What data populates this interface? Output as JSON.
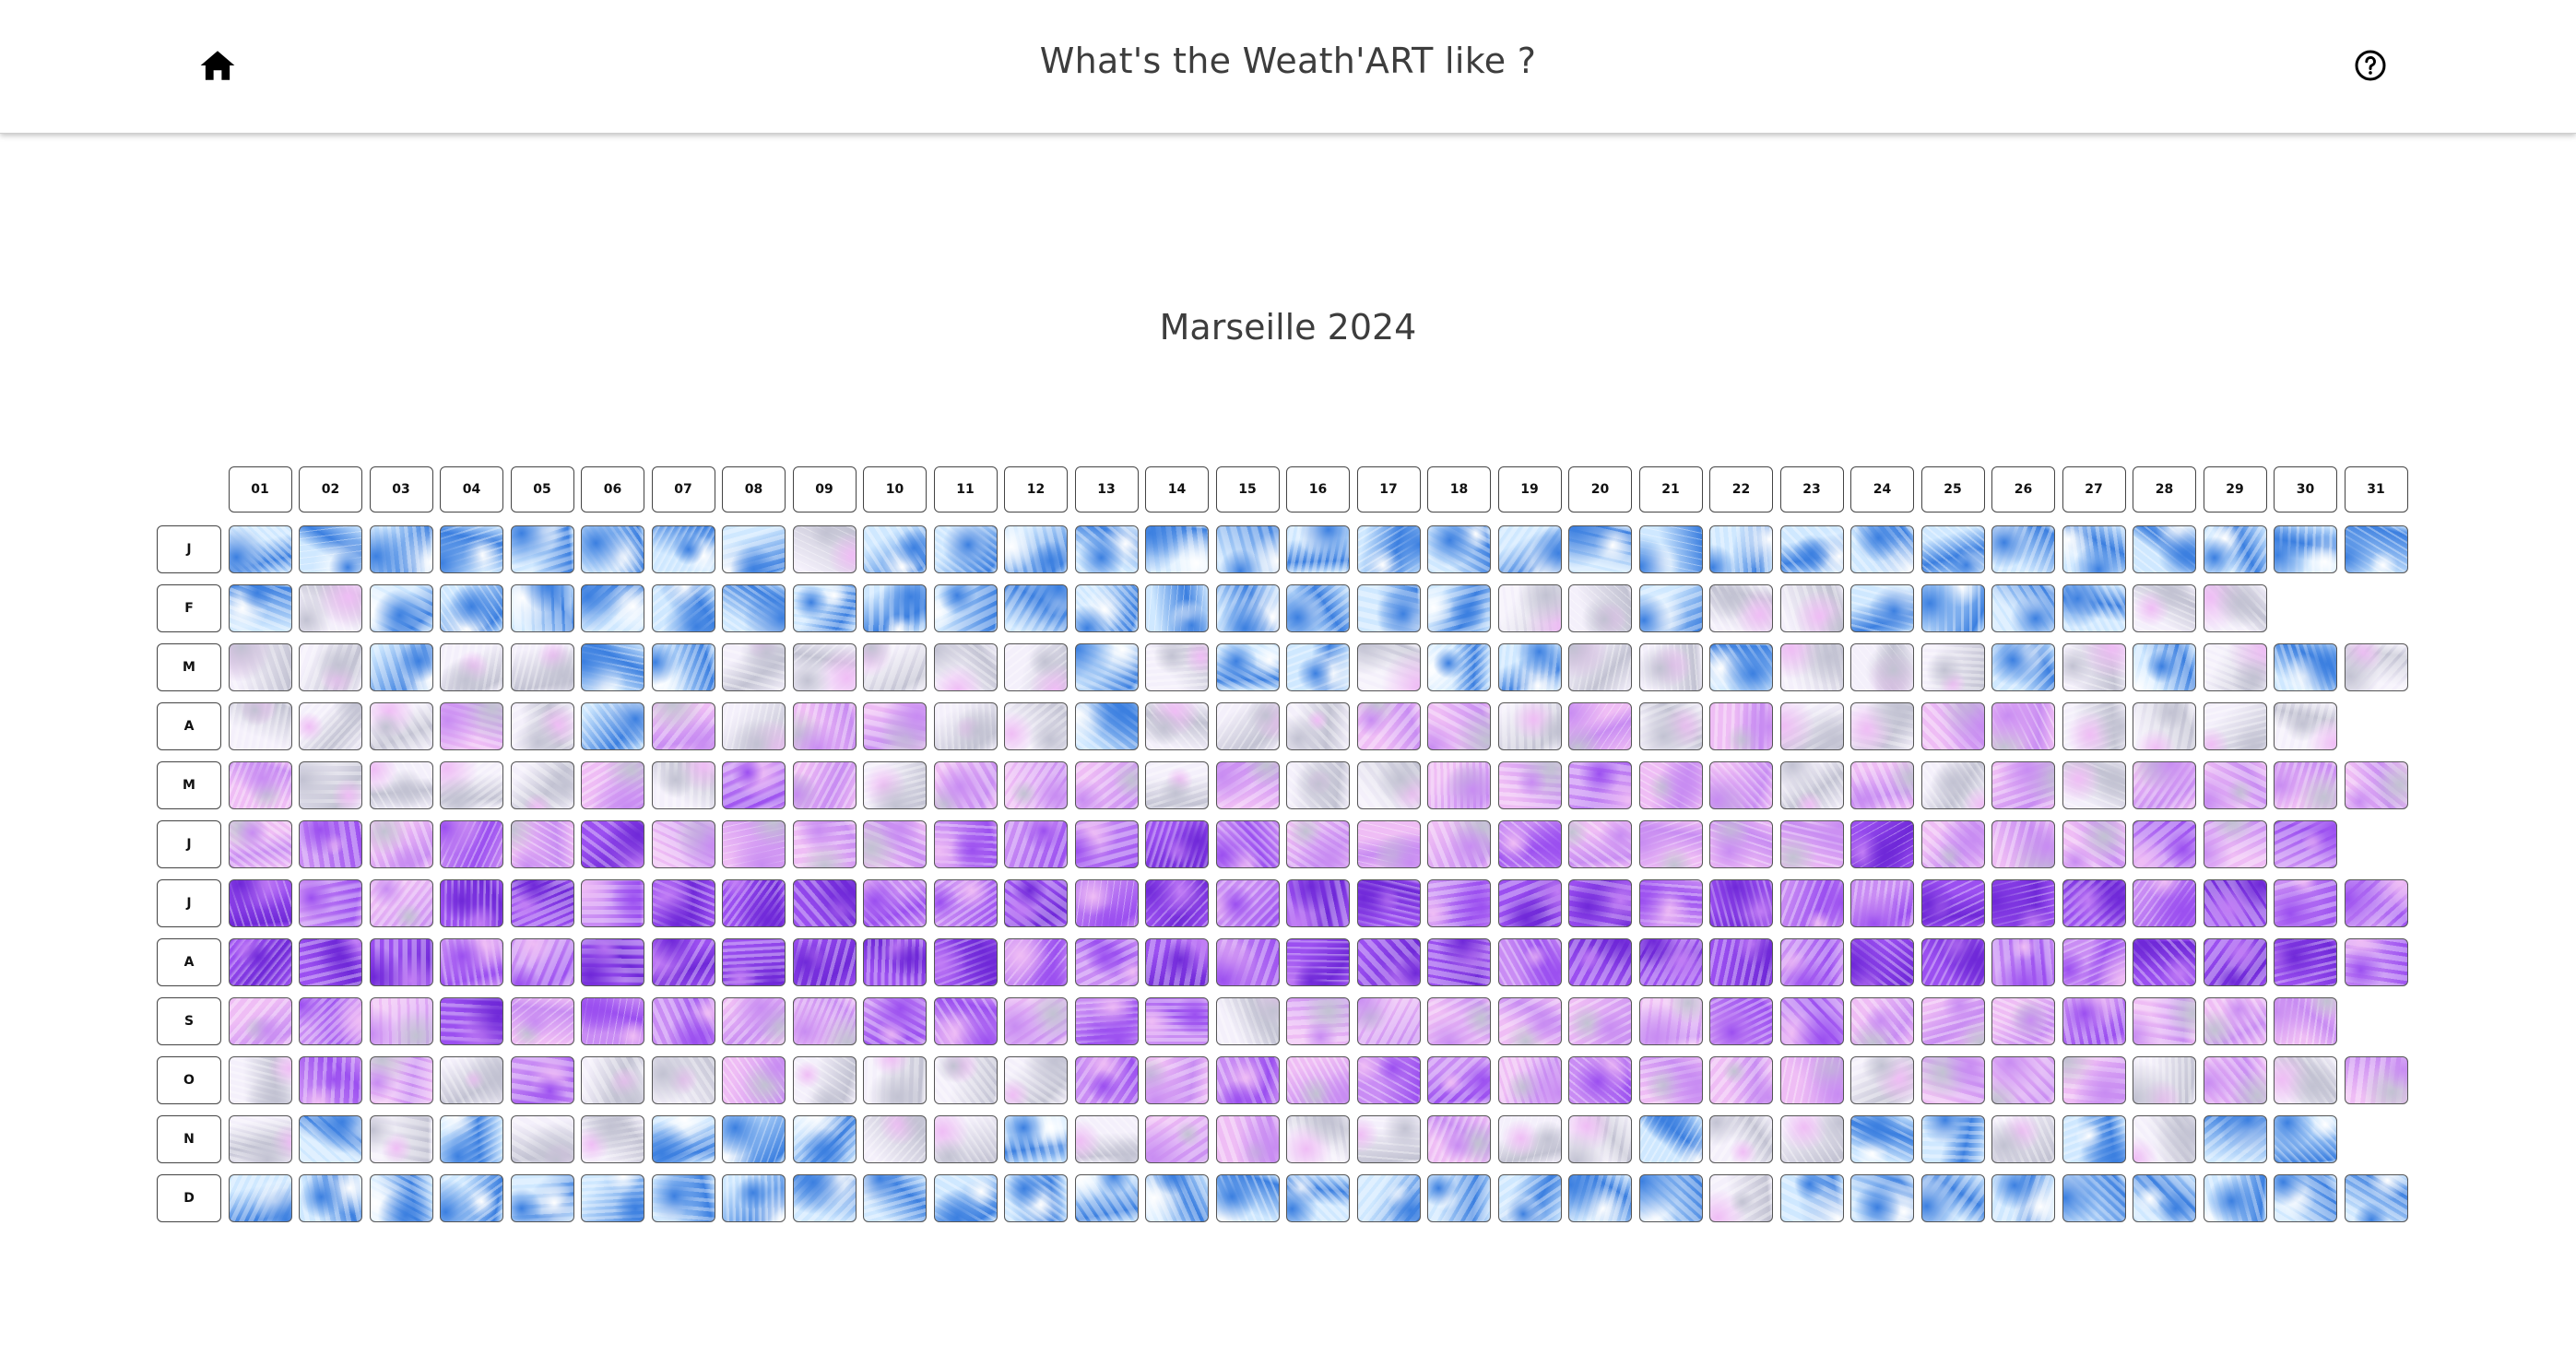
{
  "header": {
    "title": "What's the Weath'ART like ?",
    "home_icon": "home-icon",
    "help_icon": "question-circle-icon"
  },
  "main": {
    "title": "Marseille 2024"
  },
  "calendar": {
    "day_labels": [
      "01",
      "02",
      "03",
      "04",
      "05",
      "06",
      "07",
      "08",
      "09",
      "10",
      "11",
      "12",
      "13",
      "14",
      "15",
      "16",
      "17",
      "18",
      "19",
      "20",
      "21",
      "22",
      "23",
      "24",
      "25",
      "26",
      "27",
      "28",
      "29",
      "30",
      "31"
    ],
    "months": [
      {
        "label": "J",
        "days": 31
      },
      {
        "label": "F",
        "days": 29
      },
      {
        "label": "M",
        "days": 31
      },
      {
        "label": "A",
        "days": 30
      },
      {
        "label": "M",
        "days": 31
      },
      {
        "label": "J",
        "days": 30
      },
      {
        "label": "J",
        "days": 31
      },
      {
        "label": "A",
        "days": 31
      },
      {
        "label": "S",
        "days": 30
      },
      {
        "label": "O",
        "days": 31
      },
      {
        "label": "N",
        "days": 30
      },
      {
        "label": "D",
        "days": 31
      }
    ],
    "palette": {
      "cold_blue": "#3b7fe0",
      "ice_blue": "#cfe8ff",
      "grey": "#c2c2d2",
      "pink": "#efbdf5",
      "violet": "#9b4ff0",
      "deep_violet": "#6f28d8"
    }
  }
}
